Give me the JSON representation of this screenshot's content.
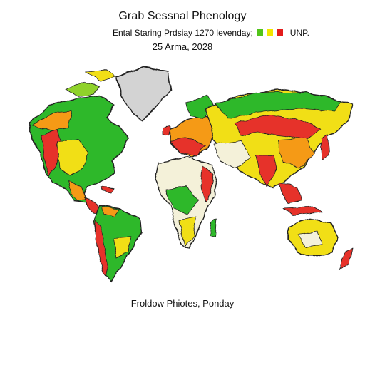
{
  "map": {
    "title": "Grab Sessnal Phenology",
    "subtitle": "Ental Staring Prdsiay 1270 levenday;",
    "date": "25 Arma, 2028",
    "caption": "Froldow Phiotes, Ponday",
    "legend": {
      "label": "UNP.",
      "colors": [
        "#52c41a",
        "#f2e600",
        "#e31b1b"
      ]
    },
    "colors": {
      "low": "#2fb82a",
      "lowmid": "#8fd22b",
      "mid": "#f1df18",
      "midhigh": "#f59a15",
      "high": "#e6322a",
      "neutral": "#f4f1d9",
      "greenland": "#d3d3d3",
      "border": "#222222"
    }
  }
}
